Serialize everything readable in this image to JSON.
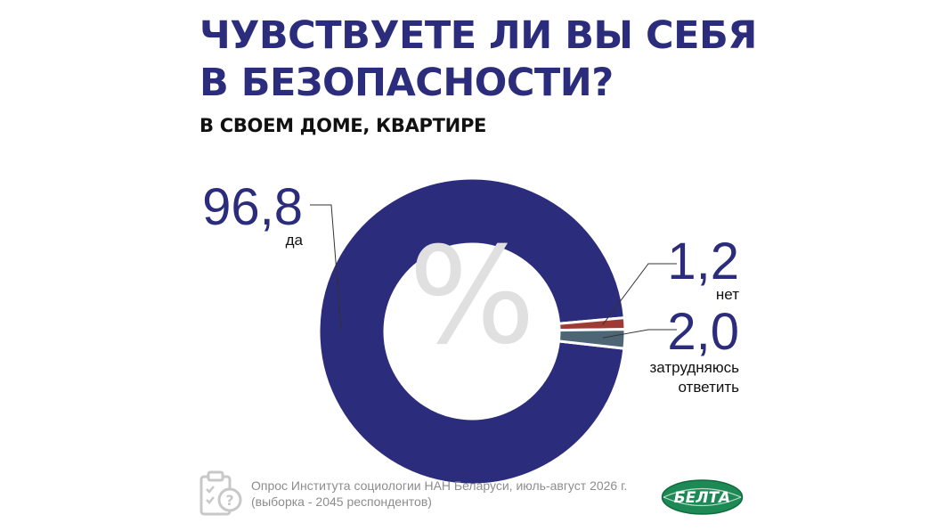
{
  "header": {
    "title_line1": "ЧУВСТВУЕТЕ ЛИ ВЫ СЕБЯ",
    "title_line2": "В БЕЗОПАСНОСТИ?",
    "subtitle": "В СВОЕМ ДОМЕ, КВАРТИРЕ"
  },
  "chart_data": {
    "type": "pie",
    "donut": true,
    "center_symbol": "%",
    "slices": [
      {
        "label_lines": [
          "да"
        ],
        "value": 96.8,
        "display": "96,8",
        "color": "#2b2c7c"
      },
      {
        "label_lines": [
          "нет"
        ],
        "value": 1.2,
        "display": "1,2",
        "color": "#9e3b35"
      },
      {
        "label_lines": [
          "затрудняюсь",
          "ответить"
        ],
        "value": 2.0,
        "display": "2,0",
        "color": "#4d6575"
      }
    ]
  },
  "footer": {
    "note_line1": "Опрос Института социологии НАН Беларуси, июль-август 2026 г.",
    "note_line2": "(выборка - 2045 респондентов)",
    "logo_text": "БЕЛТА",
    "icons": [
      "clipboard-question-icon",
      "belta-logo"
    ]
  }
}
